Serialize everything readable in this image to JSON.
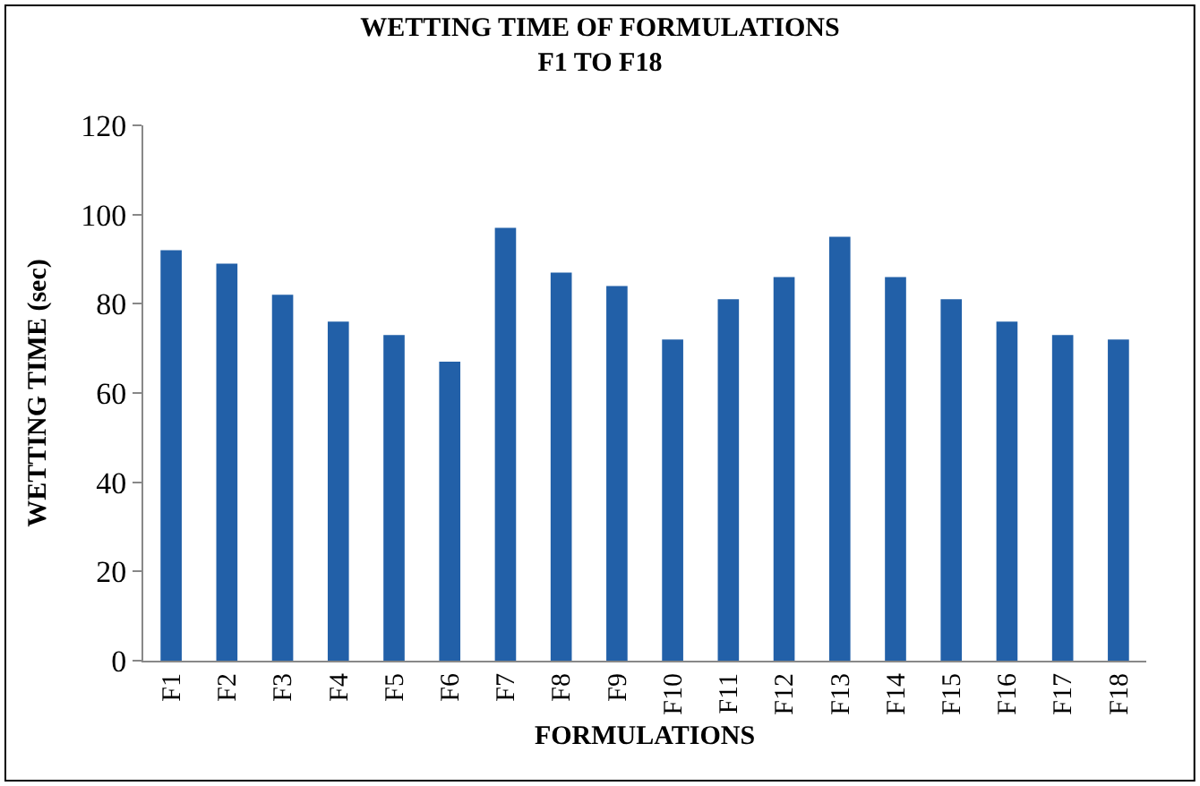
{
  "chart_data": {
    "type": "bar",
    "title": "WETTING TIME OF FORMULATIONS\nF1 TO F18",
    "xlabel": "FORMULATIONS",
    "ylabel": "WETTING TIME (sec)",
    "categories": [
      "F1",
      "F2",
      "F3",
      "F4",
      "F5",
      "F6",
      "F7",
      "F8",
      "F9",
      "F10",
      "F11",
      "F12",
      "F13",
      "F14",
      "F15",
      "F16",
      "F17",
      "F18"
    ],
    "values": [
      92,
      89,
      82,
      76,
      73,
      67,
      97,
      87,
      84,
      72,
      81,
      86,
      95,
      86,
      81,
      76,
      73,
      72
    ],
    "color": "#2260a8",
    "ylim": [
      0,
      120
    ],
    "yticks": [
      0,
      20,
      40,
      60,
      80,
      100,
      120
    ],
    "legend": false
  }
}
